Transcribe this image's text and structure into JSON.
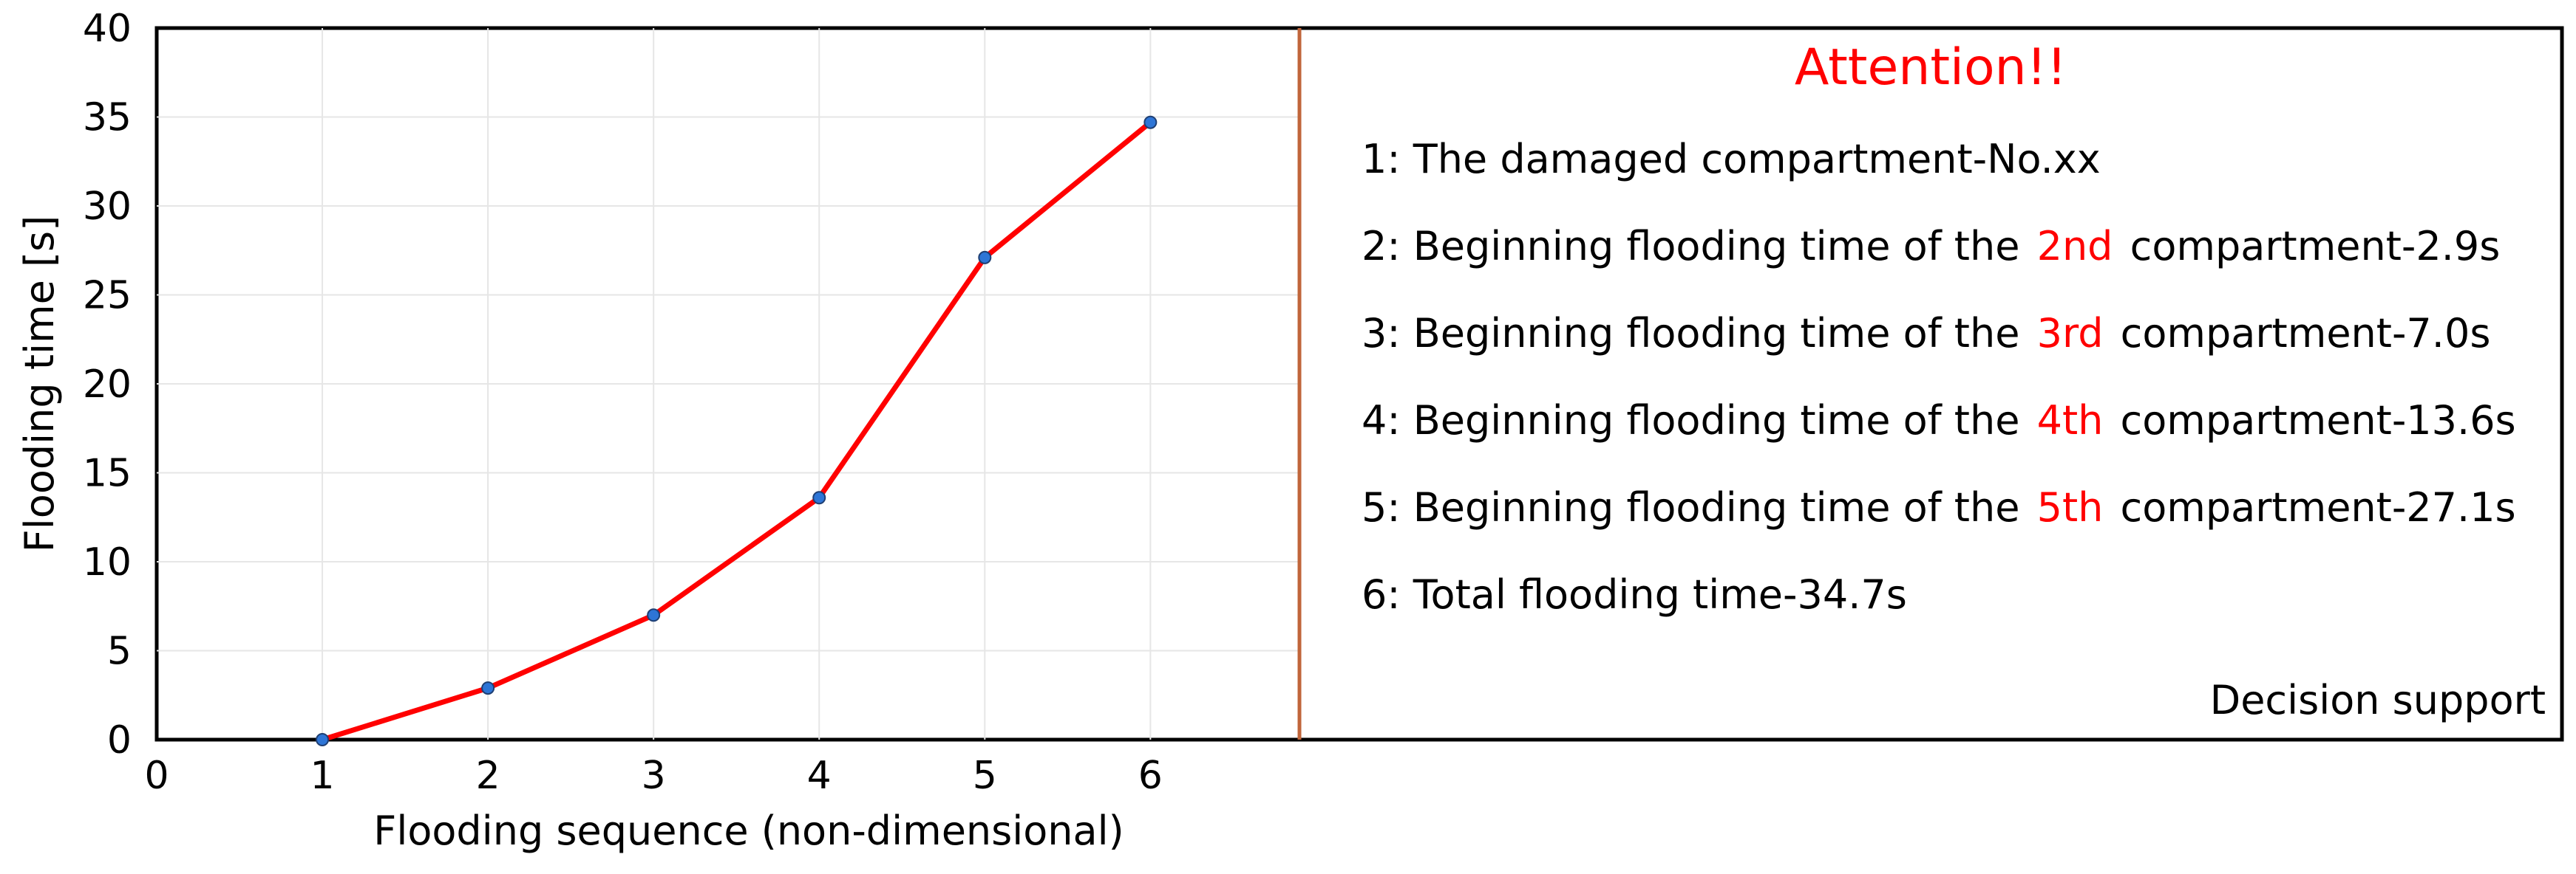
{
  "chart_data": {
    "type": "line",
    "x": [
      1,
      2,
      3,
      4,
      5,
      6
    ],
    "series": [
      {
        "values": [
          0,
          2.9,
          7.0,
          13.6,
          27.1,
          34.7
        ],
        "color": "#ff0000",
        "marker_color": "#2e75d6"
      }
    ],
    "xlabel": "Flooding sequence (non-dimensional)",
    "ylabel": "Flooding time [s]",
    "xlim": [
      0,
      6.9
    ],
    "ylim": [
      0,
      40
    ],
    "xticks": [
      0,
      1,
      2,
      3,
      4,
      5,
      6
    ],
    "yticks": [
      0,
      5,
      10,
      15,
      20,
      25,
      30,
      35,
      40
    ],
    "grid": true,
    "divider_color": "#c0653a"
  },
  "panel": {
    "attention": "Attention!!",
    "lines": [
      {
        "pre": "1: The damaged compartment-No.xx"
      },
      {
        "pre": "2: Beginning flooding time of the",
        "ord": "2nd",
        "post": "compartment-2.9s"
      },
      {
        "pre": "3: Beginning flooding time of the",
        "ord": "3rd",
        "post": "compartment-7.0s"
      },
      {
        "pre": "4: Beginning flooding time of the",
        "ord": "4th",
        "post": "compartment-13.6s"
      },
      {
        "pre": "5: Beginning flooding time of the",
        "ord": "5th",
        "post": "compartment-27.1s"
      },
      {
        "pre": "6: Total flooding time-34.7s"
      }
    ],
    "decision": "Decision support"
  }
}
